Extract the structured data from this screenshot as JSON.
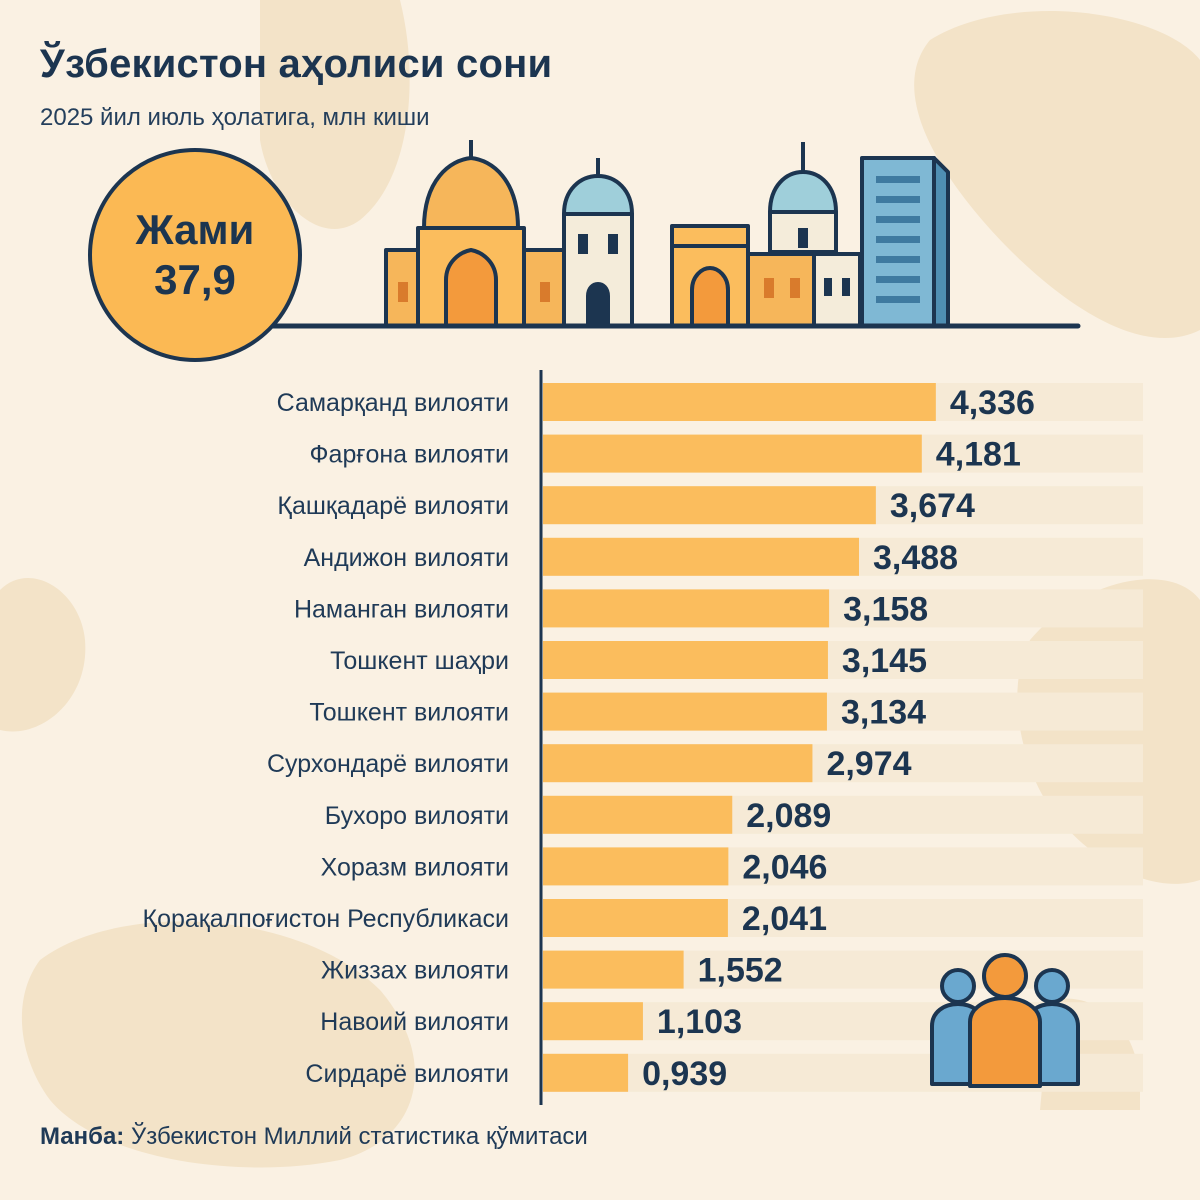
{
  "header": {
    "title": "Ўзбекистон аҳолиси сони",
    "subtitle": "2025 йил июль ҳолатига, млн киши"
  },
  "total": {
    "label": "Жами",
    "value": "37,9"
  },
  "footer": {
    "source_label": "Манба:",
    "source_text": "Ўзбекистон Миллий статистика қўмитаси"
  },
  "colors": {
    "bar": "#fbbd5d",
    "bar_track": "#f6ead6",
    "text_dark": "#1c3550",
    "background": "#faf1e3"
  },
  "chart_data": {
    "type": "bar",
    "orientation": "horizontal",
    "categories": [
      "Самарқанд вилояти",
      "Фарғона вилояти",
      "Қашқадарё вилояти",
      "Андижон вилояти",
      "Наманган вилояти",
      "Тошкент шаҳри",
      "Тошкент вилояти",
      "Сурхондарё вилояти",
      "Бухоро вилояти",
      "Хоразм вилояти",
      "Қорақалпоғистон Республикаси",
      "Жиззах вилояти",
      "Навоий вилояти",
      "Сирдарё вилояти"
    ],
    "values": [
      4.336,
      4.181,
      3.674,
      3.488,
      3.158,
      3.145,
      3.134,
      2.974,
      2.089,
      2.046,
      2.041,
      1.552,
      1.103,
      0.939
    ],
    "value_labels": [
      "4,336",
      "4,181",
      "3,674",
      "3,488",
      "3,158",
      "3,145",
      "3,134",
      "2,974",
      "2,089",
      "2,046",
      "2,041",
      "1,552",
      "1,103",
      "0,939"
    ],
    "xlim": [
      0,
      6
    ],
    "grid": false,
    "legend": "none"
  }
}
